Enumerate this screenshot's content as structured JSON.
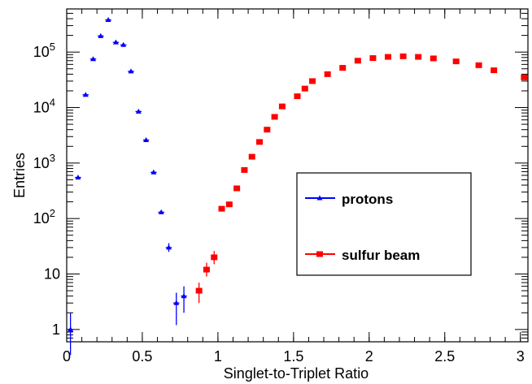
{
  "chart_data": {
    "type": "scatter",
    "title": "",
    "xlabel": "Singlet-to-Triplet Ratio",
    "ylabel": "Entries",
    "xlim": [
      0,
      3.05
    ],
    "ylim": [
      0.6,
      600000
    ],
    "yscale": "log",
    "grid": false,
    "legend_position": "center-right",
    "x_ticks": [
      {
        "value": 0,
        "label": "0"
      },
      {
        "value": 0.5,
        "label": "0.5"
      },
      {
        "value": 1,
        "label": "1"
      },
      {
        "value": 1.5,
        "label": "1.5"
      },
      {
        "value": 2,
        "label": "2"
      },
      {
        "value": 2.5,
        "label": "2.5"
      },
      {
        "value": 3,
        "label": "3"
      }
    ],
    "y_ticks": [
      {
        "value": 1,
        "label": "1"
      },
      {
        "value": 10,
        "label": "10"
      },
      {
        "value": 100,
        "label": "10^2"
      },
      {
        "value": 1000,
        "label": "10^3"
      },
      {
        "value": 10000,
        "label": "10^4"
      },
      {
        "value": 100000,
        "label": "10^5"
      }
    ],
    "series": [
      {
        "name": "protons",
        "color": "#0000ff",
        "marker": "triangle",
        "points": [
          {
            "x": 0.025,
            "y": 1,
            "ylo": 0.35,
            "yhi": 2
          },
          {
            "x": 0.075,
            "y": 550
          },
          {
            "x": 0.125,
            "y": 17000
          },
          {
            "x": 0.175,
            "y": 75000
          },
          {
            "x": 0.225,
            "y": 195000
          },
          {
            "x": 0.275,
            "y": 380000
          },
          {
            "x": 0.325,
            "y": 150000
          },
          {
            "x": 0.375,
            "y": 135000
          },
          {
            "x": 0.425,
            "y": 45000
          },
          {
            "x": 0.475,
            "y": 8500
          },
          {
            "x": 0.525,
            "y": 2600
          },
          {
            "x": 0.575,
            "y": 680
          },
          {
            "x": 0.625,
            "y": 130
          },
          {
            "x": 0.675,
            "y": 30,
            "ylo": 25,
            "yhi": 36
          },
          {
            "x": 0.725,
            "y": 3,
            "ylo": 1.2,
            "yhi": 4.6
          },
          {
            "x": 0.775,
            "y": 4,
            "ylo": 2,
            "yhi": 6
          }
        ]
      },
      {
        "name": "sulfur beam",
        "color": "#ff0000",
        "marker": "square",
        "points": [
          {
            "x": 0.875,
            "y": 5,
            "ylo": 3,
            "yhi": 7
          },
          {
            "x": 0.925,
            "y": 12,
            "ylo": 9,
            "yhi": 16
          },
          {
            "x": 0.975,
            "y": 20,
            "ylo": 15,
            "yhi": 26
          },
          {
            "x": 1.025,
            "y": 150
          },
          {
            "x": 1.075,
            "y": 180
          },
          {
            "x": 1.125,
            "y": 350
          },
          {
            "x": 1.175,
            "y": 750
          },
          {
            "x": 1.225,
            "y": 1300
          },
          {
            "x": 1.275,
            "y": 2400
          },
          {
            "x": 1.325,
            "y": 4000
          },
          {
            "x": 1.375,
            "y": 6800
          },
          {
            "x": 1.425,
            "y": 10500
          },
          {
            "x": 1.525,
            "y": 16000
          },
          {
            "x": 1.575,
            "y": 22000
          },
          {
            "x": 1.625,
            "y": 30000
          },
          {
            "x": 1.725,
            "y": 40000
          },
          {
            "x": 1.825,
            "y": 52000
          },
          {
            "x": 1.925,
            "y": 70000
          },
          {
            "x": 2.025,
            "y": 78000
          },
          {
            "x": 2.125,
            "y": 82000
          },
          {
            "x": 2.225,
            "y": 84000
          },
          {
            "x": 2.325,
            "y": 82000
          },
          {
            "x": 2.425,
            "y": 77000
          },
          {
            "x": 2.575,
            "y": 68000
          },
          {
            "x": 2.725,
            "y": 58000
          },
          {
            "x": 2.825,
            "y": 47000
          },
          {
            "x": 3.025,
            "y": 35000
          }
        ]
      }
    ]
  },
  "legend": {
    "items": [
      {
        "label": "protons"
      },
      {
        "label": "sulfur beam"
      }
    ]
  }
}
